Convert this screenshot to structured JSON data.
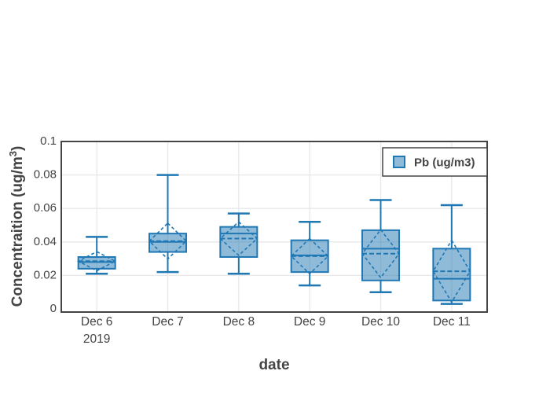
{
  "chart_data": {
    "type": "box",
    "title": "",
    "xlabel": "date",
    "ylabel": "Concentraition (ug/m³)",
    "ylabel_parts": {
      "pre": "Concentraition (ug/m",
      "sup": "3",
      "post": ")"
    },
    "legend": {
      "position": "top-right",
      "entries": [
        {
          "label": "Pb (ug/m3)",
          "line_color": "#1f77b4",
          "fill_color": "rgba(31,119,180,0.5)"
        }
      ]
    },
    "categories": [
      "Dec 6",
      "Dec 7",
      "Dec 8",
      "Dec 9",
      "Dec 10",
      "Dec 11"
    ],
    "x_tick_lines": [
      [
        "Dec 6",
        "2019"
      ],
      [
        "Dec 7"
      ],
      [
        "Dec 8"
      ],
      [
        "Dec 9"
      ],
      [
        "Dec 10"
      ],
      [
        "Dec 11"
      ]
    ],
    "y_ticks": [
      0,
      0.02,
      0.04,
      0.06,
      0.08,
      0.1
    ],
    "y_tick_labels": [
      "0",
      "0.02",
      "0.04",
      "0.06",
      "0.08",
      "0.1"
    ],
    "ylim": [
      -0.002,
      0.1
    ],
    "grid": true,
    "series": [
      {
        "name": "Pb (ug/m3)",
        "type": "box",
        "boxmean": "sd",
        "points": [
          {
            "category": "Dec 6 2019",
            "min": 0.021,
            "q1": 0.024,
            "median": 0.028,
            "q3": 0.031,
            "max": 0.043,
            "mean": 0.0285,
            "sd": 0.0057
          },
          {
            "category": "Dec 7",
            "min": 0.022,
            "q1": 0.034,
            "median": 0.04,
            "q3": 0.045,
            "max": 0.08,
            "mean": 0.0405,
            "sd": 0.0107
          },
          {
            "category": "Dec 8",
            "min": 0.021,
            "q1": 0.031,
            "median": 0.045,
            "q3": 0.049,
            "max": 0.057,
            "mean": 0.042,
            "sd": 0.01
          },
          {
            "category": "Dec 9",
            "min": 0.014,
            "q1": 0.022,
            "median": 0.032,
            "q3": 0.041,
            "max": 0.052,
            "mean": 0.0315,
            "sd": 0.0105
          },
          {
            "category": "Dec 10",
            "min": 0.01,
            "q1": 0.017,
            "median": 0.036,
            "q3": 0.047,
            "max": 0.065,
            "mean": 0.033,
            "sd": 0.0143
          },
          {
            "category": "Dec 11",
            "min": 0.003,
            "q1": 0.005,
            "median": 0.018,
            "q3": 0.036,
            "max": 0.062,
            "mean": 0.0225,
            "sd": 0.0185
          }
        ]
      }
    ],
    "colors": {
      "box_line": "#1f77b4",
      "box_fill": "rgba(31,119,180,0.5)",
      "text": "#444444",
      "axis": "#444444",
      "grid": "#e8e8e8",
      "background": "#ffffff"
    }
  }
}
